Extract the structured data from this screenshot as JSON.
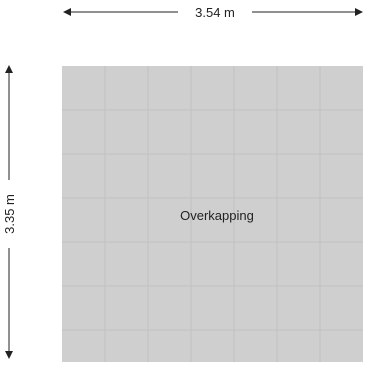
{
  "floorplan": {
    "width_label": "3.54 m",
    "height_label": "3.35 m",
    "room_name": "Overkapping",
    "colors": {
      "room_fill": "#cfcfcf",
      "tile_line": "#c2c2c2",
      "dimension_line": "#222222"
    }
  }
}
